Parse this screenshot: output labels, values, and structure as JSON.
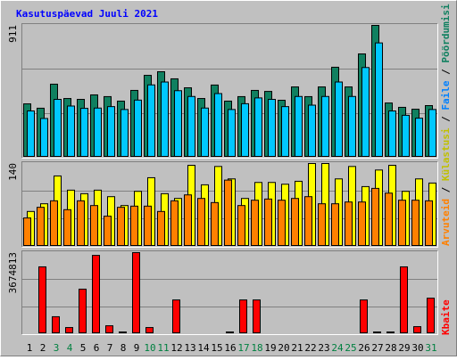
{
  "chart_data": {
    "type": "bar",
    "title": "Kasutuspäevad Juuli 2021",
    "categories": [
      "1",
      "2",
      "3",
      "4",
      "5",
      "6",
      "7",
      "8",
      "9",
      "10",
      "11",
      "12",
      "13",
      "14",
      "15",
      "16",
      "17",
      "18",
      "19",
      "20",
      "21",
      "22",
      "23",
      "24",
      "25",
      "26",
      "27",
      "28",
      "29",
      "30",
      "31"
    ],
    "category_colors": [
      "#000000",
      "#000000",
      "#008040",
      "#008040",
      "#000000",
      "#000000",
      "#000000",
      "#000000",
      "#000000",
      "#008040",
      "#008040",
      "#000000",
      "#000000",
      "#000000",
      "#000000",
      "#000000",
      "#008040",
      "#008040",
      "#000000",
      "#000000",
      "#000000",
      "#000000",
      "#000000",
      "#008040",
      "#008040",
      "#000000",
      "#000000",
      "#000000",
      "#000000",
      "#000000",
      "#008040"
    ],
    "legend_separator": "/",
    "panels": [
      {
        "ylim": [
          0,
          911
        ],
        "yticks": [
          911
        ],
        "series": [
          {
            "name": "Pöördumisi",
            "color": "#108060",
            "values": [
              369,
              339,
              505,
              406,
              400,
              431,
              419,
              388,
              462,
              566,
              591,
              542,
              480,
              406,
              499,
              388,
              419,
              462,
              455,
              394,
              486,
              419,
              486,
              622,
              486,
              714,
              911,
              375,
              345,
              332,
              357
            ]
          },
          {
            "name": "Faile",
            "color": "#00c8ff",
            "values": [
              320,
              268,
              400,
              354,
              338,
              340,
              350,
              330,
              395,
              500,
              520,
              460,
              420,
              340,
              440,
              330,
              370,
              410,
              400,
              350,
              420,
              360,
              420,
              520,
              420,
              620,
              790,
              320,
              290,
              270,
              330
            ]
          }
        ]
      },
      {
        "ylim": [
          0,
          140
        ],
        "yticks": [
          140
        ],
        "series": [
          {
            "name": "Külastusi",
            "color": "#ffff00",
            "values": [
              59,
              72,
              119,
              95,
              89,
              95,
              84,
              69,
              93,
              116,
              89,
              81,
              137,
              104,
              135,
              114,
              81,
              108,
              108,
              105,
              110,
              140,
              140,
              114,
              135,
              101,
              129,
              137,
              93,
              114,
              107
            ]
          },
          {
            "name": "Arvuteid",
            "color": "#ff8000",
            "values": [
              48,
              66,
              77,
              62,
              77,
              69,
              51,
              66,
              68,
              68,
              59,
              77,
              87,
              81,
              74,
              112,
              69,
              78,
              80,
              78,
              81,
              84,
              72,
              72,
              75,
              75,
              98,
              90,
              78,
              78,
              77
            ]
          }
        ]
      },
      {
        "ylim": [
          0,
          3674813
        ],
        "yticks": [
          3674813
        ],
        "series": [
          {
            "name": "Kbaite",
            "color": "#ff0000",
            "values": [
              40000,
              3030000,
              770000,
              280000,
              2020000,
              3550000,
              360000,
              80000,
              3674813,
              280000,
              40000,
              1530000,
              40000,
              40000,
              40000,
              80000,
              1530000,
              1530000,
              40000,
              40000,
              40000,
              40000,
              40000,
              40000,
              40000,
              1530000,
              80000,
              80000,
              3030000,
              320000,
              1610000
            ]
          }
        ]
      }
    ]
  }
}
